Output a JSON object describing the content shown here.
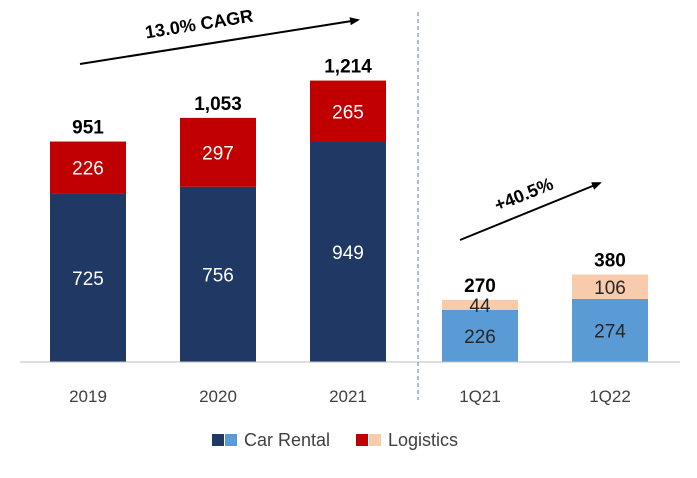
{
  "chart_data": {
    "type": "bar",
    "stacked": true,
    "categories": [
      "2019",
      "2020",
      "2021",
      "1Q21",
      "1Q22"
    ],
    "groups": [
      {
        "categories": [
          "2019",
          "2020",
          "2021"
        ],
        "growth_label": "13.0% CAGR"
      },
      {
        "categories": [
          "1Q21",
          "1Q22"
        ],
        "growth_label": "+40.5%"
      }
    ],
    "series": [
      {
        "name": "Car Rental",
        "values": [
          725,
          756,
          949,
          226,
          274
        ],
        "colors": [
          "#1f3864",
          "#1f3864",
          "#1f3864",
          "#5b9bd5",
          "#5b9bd5"
        ]
      },
      {
        "name": "Logistics",
        "values": [
          226,
          297,
          265,
          44,
          106
        ],
        "colors": [
          "#c00000",
          "#c00000",
          "#c00000",
          "#f8cbad",
          "#f8cbad"
        ]
      }
    ],
    "totals": [
      "951",
      "1,053",
      "1,214",
      "270",
      "380"
    ],
    "label_colors": {
      "dark_bars": "#ffffff",
      "light_bars": "#262626"
    },
    "divider": "dashed vertical line between 2021 and 1Q21",
    "legend": {
      "placement": "bottom-center",
      "items": [
        {
          "label": "Car Rental",
          "swatches": [
            "#1f3864",
            "#5b9bd5"
          ]
        },
        {
          "label": "Logistics",
          "swatches": [
            "#c00000",
            "#f8cbad"
          ]
        }
      ]
    },
    "title": "",
    "xlabel": "",
    "ylabel": ""
  }
}
